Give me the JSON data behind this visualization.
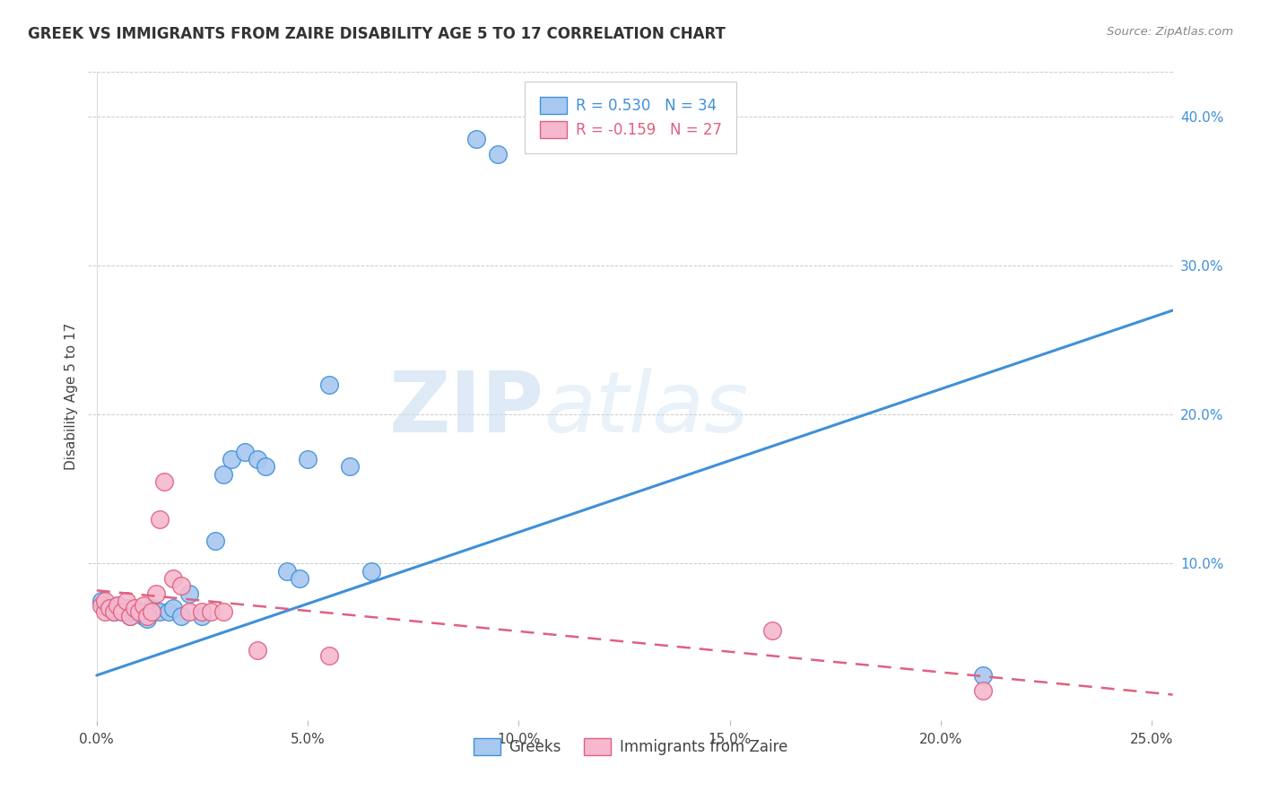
{
  "title": "GREEK VS IMMIGRANTS FROM ZAIRE DISABILITY AGE 5 TO 17 CORRELATION CHART",
  "source": "Source: ZipAtlas.com",
  "ylabel": "Disability Age 5 to 17",
  "xlabel": "",
  "xlim": [
    -0.002,
    0.255
  ],
  "ylim": [
    -0.005,
    0.43
  ],
  "xticks": [
    0.0,
    0.05,
    0.1,
    0.15,
    0.2,
    0.25
  ],
  "yticks_right": [
    0.1,
    0.2,
    0.3,
    0.4
  ],
  "greek_R": 0.53,
  "greek_N": 34,
  "zaire_R": -0.159,
  "zaire_N": 27,
  "greek_color": "#A8C8F0",
  "zaire_color": "#F5B8CE",
  "greek_line_color": "#4090D8",
  "zaire_line_color": "#E06080",
  "background_color": "#ffffff",
  "watermark_zip": "ZIP",
  "watermark_atlas": "atlas",
  "greek_points_x": [
    0.001,
    0.002,
    0.003,
    0.004,
    0.005,
    0.006,
    0.007,
    0.008,
    0.009,
    0.01,
    0.011,
    0.012,
    0.013,
    0.015,
    0.017,
    0.018,
    0.02,
    0.022,
    0.025,
    0.028,
    0.03,
    0.032,
    0.035,
    0.038,
    0.04,
    0.045,
    0.048,
    0.05,
    0.055,
    0.06,
    0.065,
    0.09,
    0.095,
    0.21
  ],
  "greek_points_y": [
    0.075,
    0.072,
    0.07,
    0.068,
    0.072,
    0.068,
    0.07,
    0.065,
    0.068,
    0.068,
    0.065,
    0.063,
    0.07,
    0.068,
    0.068,
    0.07,
    0.065,
    0.08,
    0.065,
    0.115,
    0.16,
    0.17,
    0.175,
    0.17,
    0.165,
    0.095,
    0.09,
    0.17,
    0.22,
    0.165,
    0.095,
    0.385,
    0.375,
    0.025
  ],
  "zaire_points_x": [
    0.001,
    0.002,
    0.002,
    0.003,
    0.004,
    0.005,
    0.006,
    0.007,
    0.008,
    0.009,
    0.01,
    0.011,
    0.012,
    0.013,
    0.014,
    0.015,
    0.016,
    0.018,
    0.02,
    0.022,
    0.025,
    0.027,
    0.03,
    0.038,
    0.055,
    0.16,
    0.21
  ],
  "zaire_points_y": [
    0.072,
    0.068,
    0.075,
    0.07,
    0.068,
    0.072,
    0.068,
    0.075,
    0.065,
    0.07,
    0.068,
    0.072,
    0.065,
    0.068,
    0.08,
    0.13,
    0.155,
    0.09,
    0.085,
    0.068,
    0.068,
    0.068,
    0.068,
    0.042,
    0.038,
    0.055,
    0.015
  ],
  "greek_trend_x": [
    0.0,
    0.255
  ],
  "greek_trend_y": [
    0.025,
    0.27
  ],
  "zaire_trend_x": [
    0.0,
    0.255
  ],
  "zaire_trend_y": [
    0.082,
    0.012
  ]
}
